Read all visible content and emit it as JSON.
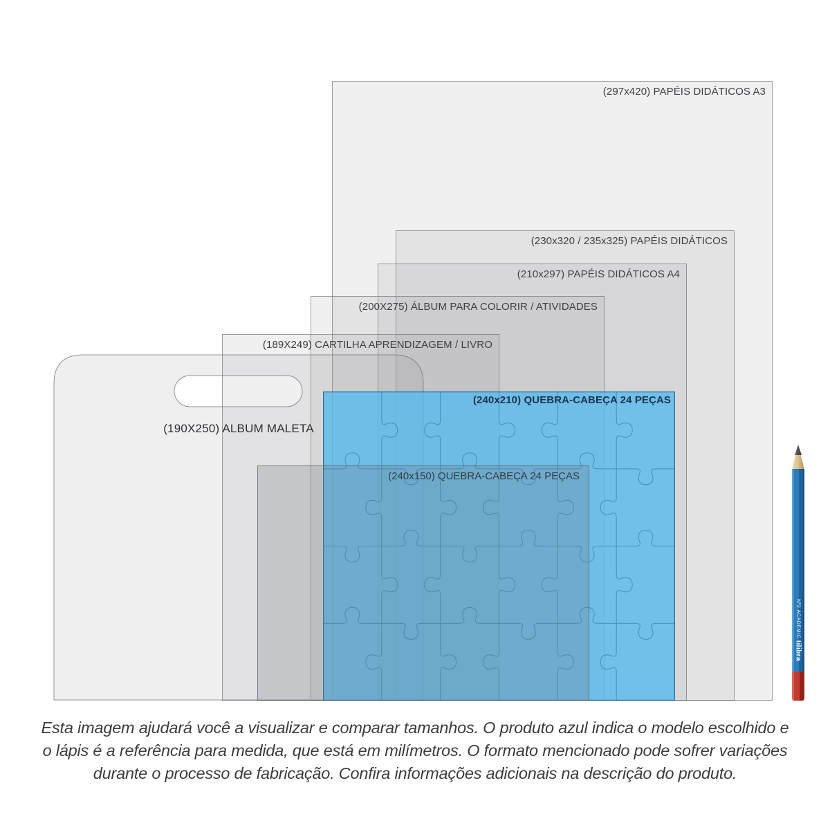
{
  "diagram": {
    "rects": [
      {
        "label": "(297x420) PAPÉIS DIDÁTICOS A3"
      },
      {
        "label": "(230x320 / 235x325) PAPÉIS DIDÁTICOS"
      },
      {
        "label": "(210x297) PAPÉIS DIDÁTICOS A4"
      },
      {
        "label": "(200X275) ÁLBUM PARA COLORIR / ATIVIDADES"
      },
      {
        "label": "(189X249) CARTILHA APRENDIZAGEM / LIVRO"
      },
      {
        "label": "(190X250) ALBUM MALETA"
      },
      {
        "label": "(240x150) QUEBRA-CABEÇA 24 PEÇAS"
      },
      {
        "label": "(240x210) QUEBRA-CABEÇA 24 PEÇAS",
        "highlighted": true
      }
    ],
    "highlight_color": "#58bae8",
    "puzzle": {
      "pieces": 24,
      "cols": 6,
      "rows": 4
    }
  },
  "pencil": {
    "marking_small": "Nº2 ACADEMIC",
    "marking_brand": "tilibra",
    "body_color": "#2d7cb9",
    "end_color": "#c23b30"
  },
  "caption": {
    "line1": "Esta imagem ajudará você a visualizar e comparar tamanhos. O produto azul indica o modelo escolhido e",
    "line2": "o lápis é a referência para medida, que está em milímetros. O formato mencionado pode sofrer variações",
    "line3": "durante o processo de fabricação. Confira informações adicionais na descrição do produto."
  }
}
